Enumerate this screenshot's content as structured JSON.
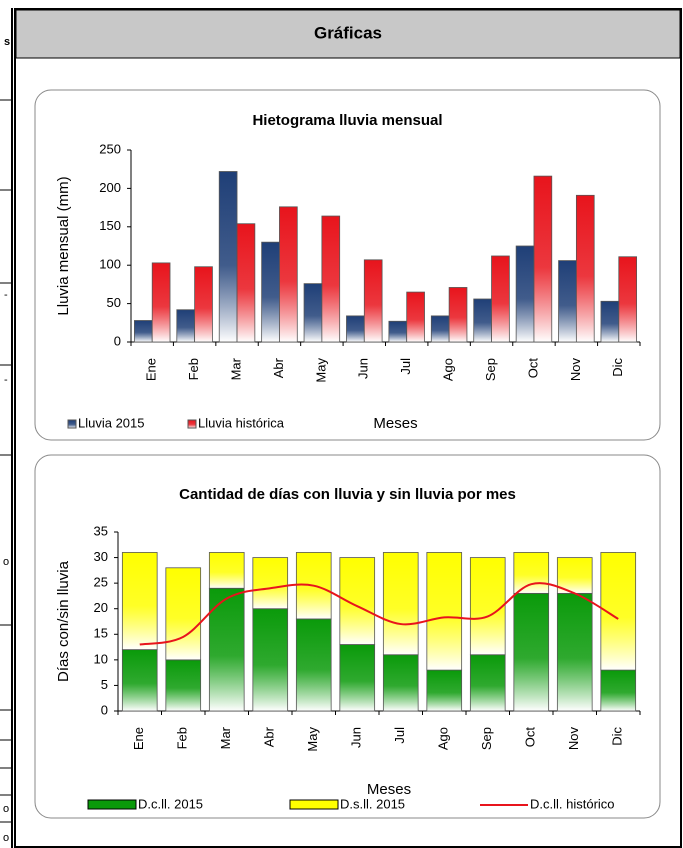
{
  "header": {
    "title": "Gráficas"
  },
  "left_column_fragments": [
    "s",
    "-",
    "-",
    "o",
    "o",
    "o"
  ],
  "chart_data": [
    {
      "type": "bar",
      "title": "Hietograma lluvia mensual",
      "x_label": "Meses",
      "y_label": "Lluvia mensual (mm)",
      "categories": [
        "Ene",
        "Feb",
        "Mar",
        "Abr",
        "May",
        "Jun",
        "Jul",
        "Ago",
        "Sep",
        "Oct",
        "Nov",
        "Dic"
      ],
      "series": [
        {
          "name": "Lluvia 2015",
          "color": "#1f3f77",
          "values": [
            28,
            42,
            222,
            130,
            76,
            34,
            27,
            34,
            56,
            125,
            106,
            53
          ]
        },
        {
          "name": "Lluvia histórica",
          "color": "#e8141c",
          "values": [
            103,
            98,
            154,
            176,
            164,
            107,
            65,
            71,
            112,
            216,
            191,
            111
          ]
        }
      ],
      "ylim": [
        0,
        250
      ],
      "yticks": [
        0,
        50,
        100,
        150,
        200,
        250
      ],
      "stacked": false,
      "legend": "bottom-left"
    },
    {
      "type": "bar",
      "title": "Cantidad de días con lluvia y sin lluvia por mes",
      "x_label": "Meses",
      "y_label": "Días con/sin lluvia",
      "categories": [
        "Ene",
        "Feb",
        "Mar",
        "Abr",
        "May",
        "Jun",
        "Jul",
        "Ago",
        "Sep",
        "Oct",
        "Nov",
        "Dic"
      ],
      "series": [
        {
          "name": "D.c.ll. 2015",
          "color": "#0a9a0a",
          "values": [
            12,
            10,
            24,
            20,
            18,
            13,
            11,
            8,
            11,
            23,
            23,
            8
          ]
        },
        {
          "name": "D.s.ll. 2015",
          "color": "#ffff00",
          "values": [
            19,
            18,
            7,
            10,
            13,
            17,
            20,
            23,
            19,
            8,
            7,
            23
          ]
        },
        {
          "name": "D.c.ll. histórico",
          "color": "#e8141c",
          "type": "line",
          "values": [
            13,
            14.5,
            22,
            24,
            24.5,
            20.5,
            17,
            18.3,
            18.5,
            24.8,
            23,
            18
          ]
        }
      ],
      "ylim": [
        0,
        35
      ],
      "yticks": [
        0,
        5,
        10,
        15,
        20,
        25,
        30,
        35
      ],
      "stacked": true,
      "legend": "bottom"
    }
  ]
}
